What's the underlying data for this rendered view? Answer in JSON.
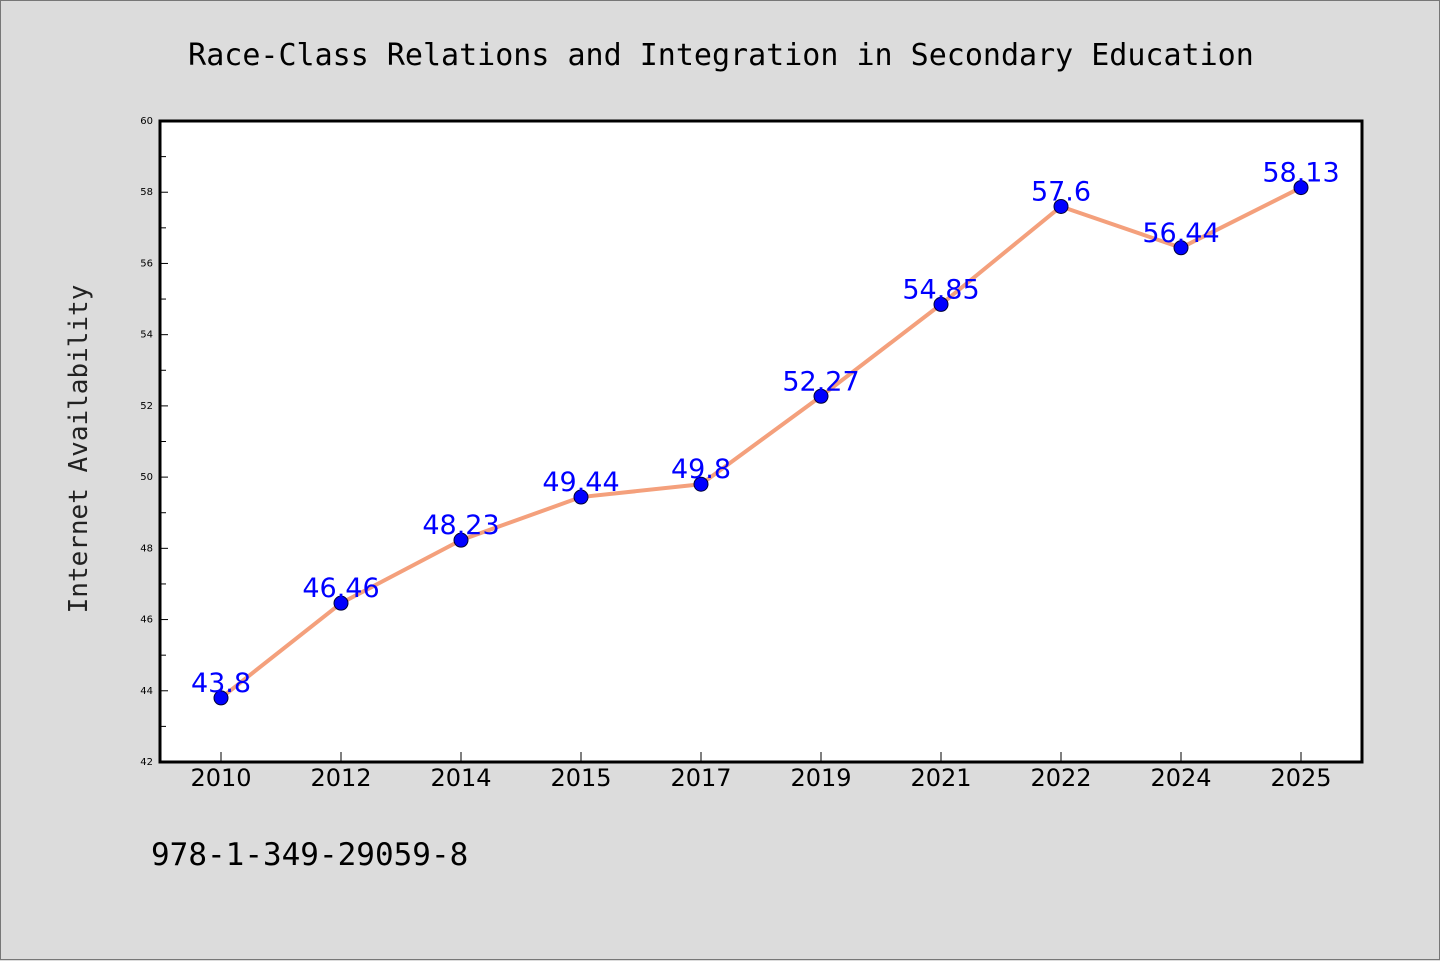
{
  "chart_data": {
    "type": "line",
    "title": "Race-Class Relations and Integration in Secondary Education",
    "xlabel": "",
    "ylabel": "Internet Availability",
    "categories": [
      "2010",
      "2012",
      "2014",
      "2015",
      "2017",
      "2019",
      "2021",
      "2022",
      "2024",
      "2025"
    ],
    "series": [
      {
        "values": [
          43.8,
          46.46,
          48.23,
          49.44,
          49.8,
          52.27,
          54.85,
          57.6,
          56.44,
          58.13
        ],
        "data_labels": [
          "43.8",
          "46.46",
          "48.23",
          "49.44",
          "49.8",
          "52.27",
          "54.85",
          "57.6",
          "56.44",
          "58.13"
        ]
      }
    ],
    "ylim": [
      42,
      60
    ],
    "yticks": [
      "42",
      "44",
      "46",
      "48",
      "50",
      "52",
      "54",
      "56",
      "58",
      "60"
    ],
    "grid": false,
    "legend": "none",
    "colors": {
      "line": "#f4a07c",
      "marker": "#0000ff",
      "label": "#0000ff",
      "background": "#dcdcdc",
      "plot_background": "#ffffff"
    }
  },
  "footer": {
    "isbn": "978-1-349-29059-8"
  }
}
